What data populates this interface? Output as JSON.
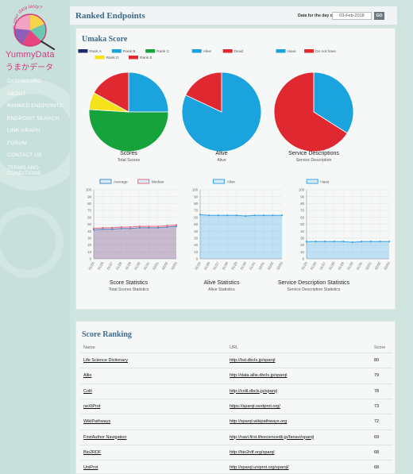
{
  "sidebar": {
    "logo_title": "YummyData",
    "logo_subtitle": "うまかデータ",
    "logo_arc_text": "Is your data tasty?",
    "nav": [
      "DASHBOARD",
      "ABOUT",
      "RANKED ENDPOINTS",
      "ENDPOINT SEARCH",
      "LINK GRAPH",
      "FORUM",
      "CONTACT US",
      "TERMS AND CONDITIONS"
    ]
  },
  "header": {
    "title": "Ranked Endpoints",
    "date_label": "Data for the day of",
    "date_value": "03-Feb-2018",
    "go_label": "GO"
  },
  "umaka": {
    "title": "Umaka Score",
    "pies": [
      {
        "legend": [
          {
            "label": "Rank A",
            "color": "#1b2a6b"
          },
          {
            "label": "Rank B",
            "color": "#1aa3dd"
          },
          {
            "label": "Rank C",
            "color": "#17a33b"
          },
          {
            "label": "Rank D",
            "color": "#f6e21a"
          },
          {
            "label": "Rank E",
            "color": "#e02831"
          }
        ],
        "slices": [
          {
            "label": "Rank A",
            "value": 0
          },
          {
            "label": "Rank B",
            "value": 25
          },
          {
            "label": "Rank C",
            "value": 51
          },
          {
            "label": "Rank D",
            "value": 7
          },
          {
            "label": "Rank E",
            "value": 17
          }
        ],
        "title": "Scores",
        "subtitle": "Total Scores"
      },
      {
        "legend": [
          {
            "label": "Alive",
            "color": "#1aa3dd"
          },
          {
            "label": "Dead",
            "color": "#e02831"
          }
        ],
        "slices": [
          {
            "label": "Alive",
            "value": 82
          },
          {
            "label": "Dead",
            "value": 18
          }
        ],
        "title": "Alive",
        "subtitle": "Alive"
      },
      {
        "legend": [
          {
            "label": "Have",
            "color": "#1aa3dd"
          },
          {
            "label": "Do not have",
            "color": "#e02831"
          }
        ],
        "slices": [
          {
            "label": "Have",
            "value": 34
          },
          {
            "label": "Do not have",
            "value": 66
          }
        ],
        "title": "Service Descriptions",
        "subtitle": "Service Description"
      }
    ],
    "lines": [
      {
        "legend": [
          {
            "label": "Average",
            "color": "#3f8fd2"
          },
          {
            "label": "Median",
            "color": "#e8687e"
          }
        ],
        "y_ticks": [
          "100",
          "90",
          "80",
          "70",
          "60",
          "50",
          "40",
          "30",
          "20",
          "10",
          "0"
        ],
        "x_ticks": [
          "01/25",
          "01/26",
          "01/27",
          "01/28",
          "01/29",
          "01/30",
          "01/31",
          "02/01",
          "02/02",
          "02/03"
        ],
        "series": [
          {
            "name": "Average",
            "values": [
              42,
              43,
              43,
              44,
              44,
              45,
              45,
              45,
              46,
              47
            ]
          },
          {
            "name": "Median",
            "values": [
              44,
              45,
              45,
              46,
              46,
              47,
              47,
              47,
              48,
              49
            ]
          }
        ],
        "title": "Score Statistics",
        "subtitle": "Total Scores Statistics"
      },
      {
        "legend": [
          {
            "label": "Alive",
            "color": "#36a2eb"
          }
        ],
        "y_ticks": [
          "100",
          "90",
          "80",
          "70",
          "60",
          "50",
          "40",
          "30",
          "20",
          "10",
          "0"
        ],
        "x_ticks": [
          "01/25",
          "01/26",
          "01/27",
          "01/28",
          "01/29",
          "01/30",
          "01/31",
          "02/01",
          "02/02",
          "02/03"
        ],
        "series": [
          {
            "name": "Alive",
            "values": [
              64,
              63,
              63,
              63,
              63,
              62,
              63,
              63,
              63,
              63
            ]
          }
        ],
        "title": "Alive Statistics",
        "subtitle": "Alive Statistics"
      },
      {
        "legend": [
          {
            "label": "Have",
            "color": "#36a2eb"
          }
        ],
        "y_ticks": [
          "100",
          "90",
          "80",
          "70",
          "60",
          "50",
          "40",
          "30",
          "20",
          "10",
          "0"
        ],
        "x_ticks": [
          "01/25",
          "01/26",
          "01/27",
          "01/28",
          "01/29",
          "01/30",
          "01/31",
          "02/01",
          "02/02",
          "02/03"
        ],
        "series": [
          {
            "name": "Have",
            "values": [
              25,
              25,
              25,
              25,
              25,
              24,
              25,
              25,
              25,
              25
            ]
          }
        ],
        "title": "Service Description Statistics",
        "subtitle": "Service Description Statistics"
      }
    ]
  },
  "ranking": {
    "title": "Score Ranking",
    "columns": [
      "Name",
      "URL",
      "Score"
    ],
    "rows": [
      {
        "name": "Life Science Dictionary",
        "url": "http://lsd.dbcls.jp/sparql",
        "score": "80"
      },
      {
        "name": "Allie",
        "url": "http://data.allie.dbcls.jp/sparql",
        "score": "79"
      },
      {
        "name": "Colil",
        "url": "http://colil.dbcls.jp/sparql",
        "score": "78"
      },
      {
        "name": "neXtProt",
        "url": "https://sparql.nextprot.org/",
        "score": "73"
      },
      {
        "name": "WikiPathways",
        "url": "http://sparql.wikipathways.org",
        "score": "72"
      },
      {
        "name": "FirstAuthor Navigation",
        "url": "http://navi.first.lifesciencedb.jp/fanavi/sparql",
        "score": "69"
      },
      {
        "name": "Bio2RDF",
        "url": "http://bio2rdf.org/sparql",
        "score": "68"
      },
      {
        "name": "UniProt",
        "url": "http://sparql.uniprot.org/sparql/",
        "score": "68"
      }
    ]
  },
  "chart_data": [
    {
      "type": "pie",
      "title": "Scores",
      "categories": [
        "Rank A",
        "Rank B",
        "Rank C",
        "Rank D",
        "Rank E"
      ],
      "values": [
        0,
        25,
        51,
        7,
        17
      ]
    },
    {
      "type": "pie",
      "title": "Alive",
      "categories": [
        "Alive",
        "Dead"
      ],
      "values": [
        82,
        18
      ]
    },
    {
      "type": "pie",
      "title": "Service Descriptions",
      "categories": [
        "Have",
        "Do not have"
      ],
      "values": [
        34,
        66
      ]
    },
    {
      "type": "line",
      "title": "Score Statistics",
      "x": [
        "01/25",
        "01/26",
        "01/27",
        "01/28",
        "01/29",
        "01/30",
        "01/31",
        "02/01",
        "02/02",
        "02/03"
      ],
      "ylim": [
        0,
        100
      ],
      "series": [
        {
          "name": "Average",
          "values": [
            42,
            43,
            43,
            44,
            44,
            45,
            45,
            45,
            46,
            47
          ]
        },
        {
          "name": "Median",
          "values": [
            44,
            45,
            45,
            46,
            46,
            47,
            47,
            47,
            48,
            49
          ]
        }
      ]
    },
    {
      "type": "area",
      "title": "Alive Statistics",
      "x": [
        "01/25",
        "01/26",
        "01/27",
        "01/28",
        "01/29",
        "01/30",
        "01/31",
        "02/01",
        "02/02",
        "02/03"
      ],
      "ylim": [
        0,
        100
      ],
      "series": [
        {
          "name": "Alive",
          "values": [
            64,
            63,
            63,
            63,
            63,
            62,
            63,
            63,
            63,
            63
          ]
        }
      ]
    },
    {
      "type": "area",
      "title": "Service Description Statistics",
      "x": [
        "01/25",
        "01/26",
        "01/27",
        "01/28",
        "01/29",
        "01/30",
        "01/31",
        "02/01",
        "02/02",
        "02/03"
      ],
      "ylim": [
        0,
        100
      ],
      "series": [
        {
          "name": "Have",
          "values": [
            25,
            25,
            25,
            25,
            25,
            24,
            25,
            25,
            25,
            25
          ]
        }
      ]
    }
  ]
}
